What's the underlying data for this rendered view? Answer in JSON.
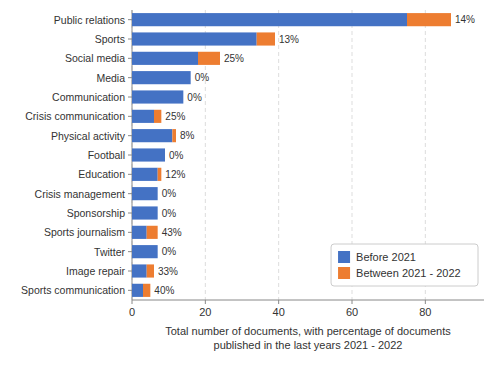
{
  "chart_data": {
    "type": "bar",
    "orientation": "horizontal",
    "stacked": true,
    "categories": [
      "Public relations",
      "Sports",
      "Social media",
      "Media",
      "Communication",
      "Crisis communication",
      "Physical activity",
      "Football",
      "Education",
      "Crisis management",
      "Sponsorship",
      "Sports journalism",
      "Twitter",
      "Image repair",
      "Sports communication"
    ],
    "series": [
      {
        "name": "Before 2021",
        "color": "#4472c4",
        "values": [
          75,
          34,
          18,
          16,
          14,
          6,
          11,
          9,
          7,
          7,
          7,
          4,
          7,
          4,
          3
        ]
      },
      {
        "name": "Between 2021 - 2022",
        "color": "#ed7d31",
        "values": [
          12,
          5,
          6,
          0,
          0,
          2,
          1,
          0,
          1,
          0,
          0,
          3,
          0,
          2,
          2
        ]
      }
    ],
    "annotations": [
      "14%",
      "13%",
      "25%",
      "0%",
      "0%",
      "25%",
      "8%",
      "0%",
      "12%",
      "0%",
      "0%",
      "43%",
      "0%",
      "33%",
      "40%"
    ],
    "xlabel": "Total number of documents, with percentage of documents\npublished in the last years 2021 - 2022",
    "xlim": [
      0,
      96
    ],
    "xticks": [
      0,
      20,
      40,
      60,
      80
    ],
    "grid": true,
    "legend": "lower right"
  }
}
